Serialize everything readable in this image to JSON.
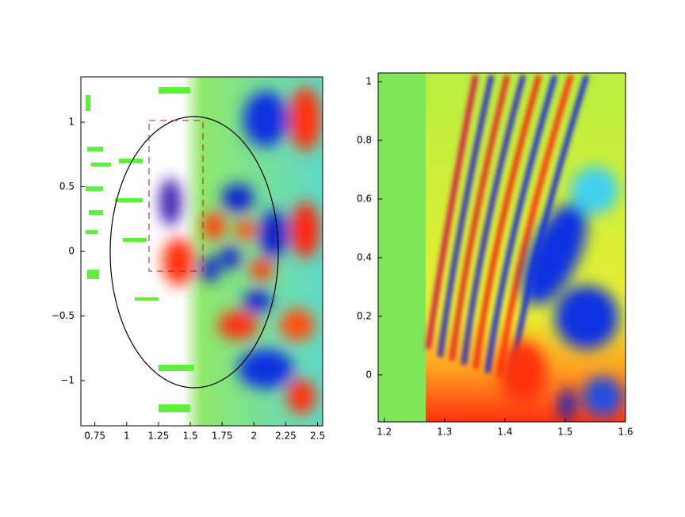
{
  "chart_data": [
    {
      "type": "heatmap",
      "xlim": [
        0.64,
        2.54
      ],
      "ylim": [
        -1.35,
        1.35
      ],
      "xticks": [
        0.75,
        1,
        1.25,
        1.5,
        1.75,
        2,
        2.25,
        2.5
      ],
      "yticks": [
        {
          "value": -1,
          "label": "−1"
        },
        {
          "value": -0.5,
          "label": "−0.5"
        },
        0,
        0.5,
        1
      ]
    },
    {
      "type": "heatmap",
      "xlim": [
        1.19,
        1.6
      ],
      "ylim": [
        -0.16,
        1.03
      ],
      "xticks": [
        1.2,
        1.3,
        1.4,
        1.5,
        1.6
      ],
      "yticks": [
        0,
        0.2,
        0.4,
        0.6,
        0.8,
        1
      ]
    }
  ]
}
